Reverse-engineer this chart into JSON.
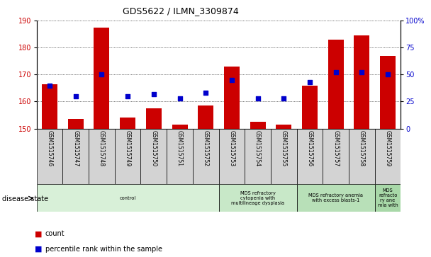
{
  "title": "GDS5622 / ILMN_3309874",
  "samples": [
    "GSM1515746",
    "GSM1515747",
    "GSM1515748",
    "GSM1515749",
    "GSM1515750",
    "GSM1515751",
    "GSM1515752",
    "GSM1515753",
    "GSM1515754",
    "GSM1515755",
    "GSM1515756",
    "GSM1515757",
    "GSM1515758",
    "GSM1515759"
  ],
  "count_values": [
    166.5,
    153.5,
    187.5,
    154.0,
    157.5,
    151.5,
    158.5,
    173.0,
    152.5,
    151.5,
    166.0,
    183.0,
    184.5,
    177.0
  ],
  "percentile_values": [
    40,
    30,
    50,
    30,
    32,
    28,
    33,
    45,
    28,
    28,
    43,
    52,
    52,
    50
  ],
  "ylim_left": [
    150,
    190
  ],
  "ylim_right": [
    0,
    100
  ],
  "yticks_left": [
    150,
    160,
    170,
    180,
    190
  ],
  "yticks_right": [
    0,
    25,
    50,
    75,
    100
  ],
  "bar_color": "#cc0000",
  "dot_color": "#0000cc",
  "disease_groups": [
    {
      "label": "control",
      "start": 0,
      "end": 7,
      "color": "#d8f0d8"
    },
    {
      "label": "MDS refractory\ncytopenia with\nmultilineage dysplasia",
      "start": 7,
      "end": 10,
      "color": "#c8e8c8"
    },
    {
      "label": "MDS refractory anemia\nwith excess blasts-1",
      "start": 10,
      "end": 13,
      "color": "#b8e0b8"
    },
    {
      "label": "MDS\nrefracto\nry ane\nmia with",
      "start": 13,
      "end": 14,
      "color": "#a8d8a8"
    }
  ],
  "disease_state_label": "disease state",
  "legend_count": "count",
  "legend_percentile": "percentile rank within the sample",
  "background_color": "#ffffff",
  "tick_label_color_left": "#cc0000",
  "tick_label_color_right": "#0000cc",
  "grid_color": "#000000",
  "sample_box_color": "#d3d3d3"
}
